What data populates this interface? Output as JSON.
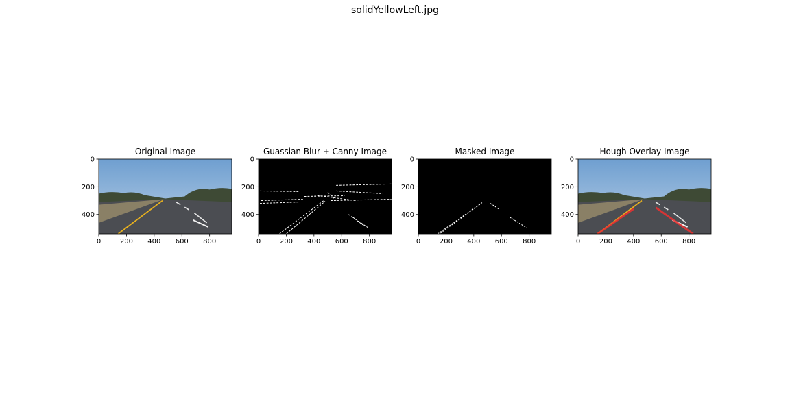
{
  "title": "solidYellowLeft.jpg",
  "chart_data": [
    {
      "type": "image",
      "title": "Original Image",
      "xlim": [
        0,
        960
      ],
      "ylim": [
        540,
        0
      ],
      "xticks": [
        0,
        200,
        400,
        600,
        800
      ],
      "yticks": [
        0,
        200,
        400
      ]
    },
    {
      "type": "image",
      "title": "Guassian Blur + Canny Image",
      "xlim": [
        0,
        960
      ],
      "ylim": [
        540,
        0
      ],
      "xticks": [
        0,
        200,
        400,
        600,
        800
      ],
      "yticks": [
        0,
        200,
        400
      ]
    },
    {
      "type": "image",
      "title": "Masked Image",
      "xlim": [
        0,
        960
      ],
      "ylim": [
        540,
        0
      ],
      "xticks": [
        0,
        200,
        400,
        600,
        800
      ],
      "yticks": [
        0,
        200,
        400
      ]
    },
    {
      "type": "image",
      "title": "Hough Overlay Image",
      "xlim": [
        0,
        960
      ],
      "ylim": [
        540,
        0
      ],
      "xticks": [
        0,
        200,
        400,
        600,
        800
      ],
      "yticks": [
        0,
        200,
        400
      ]
    }
  ]
}
